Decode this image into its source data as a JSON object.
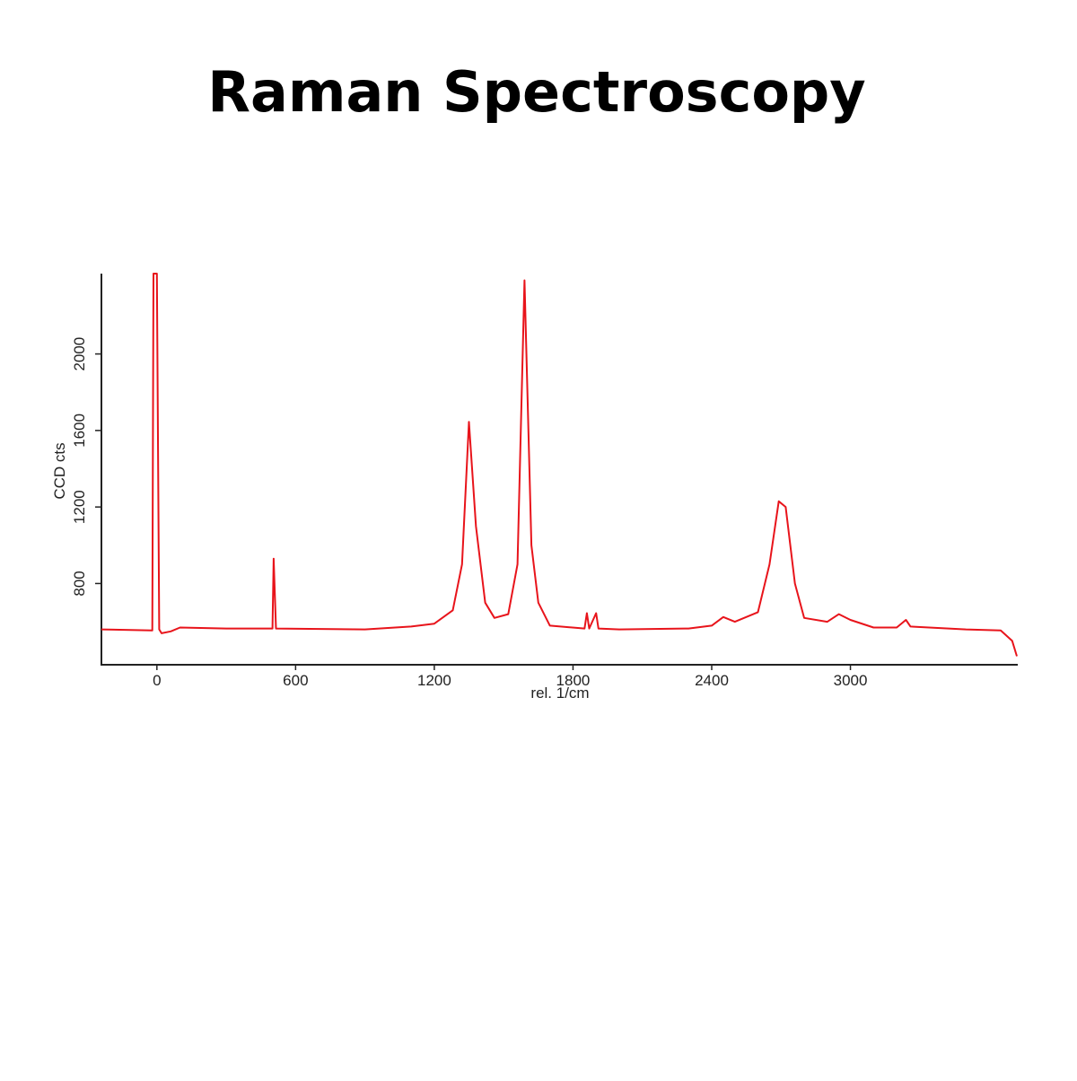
{
  "chart_data": {
    "type": "line",
    "title": "Raman Spectroscopy",
    "x_label": "rel. 1/cm",
    "y_label": "CCD cts",
    "xlim": [
      -240,
      3720
    ],
    "ylim": [
      380,
      2420
    ],
    "xticks": [
      0,
      600,
      1200,
      1800,
      2400,
      3000
    ],
    "yticks": [
      800,
      1200,
      1600,
      2000
    ],
    "series": [
      {
        "color": "#e8141b",
        "x": [
          -240,
          -20,
          -15,
          0,
          10,
          20,
          60,
          100,
          300,
          500,
          505,
          515,
          900,
          1100,
          1200,
          1280,
          1320,
          1350,
          1380,
          1420,
          1460,
          1520,
          1560,
          1590,
          1620,
          1650,
          1700,
          1850,
          1860,
          1870,
          1900,
          1910,
          2000,
          2300,
          2400,
          2450,
          2500,
          2600,
          2650,
          2690,
          2720,
          2760,
          2800,
          2900,
          2950,
          3000,
          3100,
          3200,
          3240,
          3260,
          3500,
          3650,
          3700,
          3720
        ],
        "values": [
          560,
          555,
          2420,
          2420,
          560,
          540,
          550,
          570,
          565,
          565,
          930,
          565,
          560,
          575,
          590,
          660,
          900,
          1645,
          1100,
          700,
          620,
          640,
          900,
          2385,
          1000,
          700,
          580,
          565,
          645,
          565,
          645,
          565,
          560,
          565,
          580,
          625,
          600,
          650,
          900,
          1230,
          1200,
          800,
          620,
          600,
          640,
          610,
          570,
          570,
          610,
          575,
          560,
          555,
          500,
          420
        ]
      }
    ]
  }
}
